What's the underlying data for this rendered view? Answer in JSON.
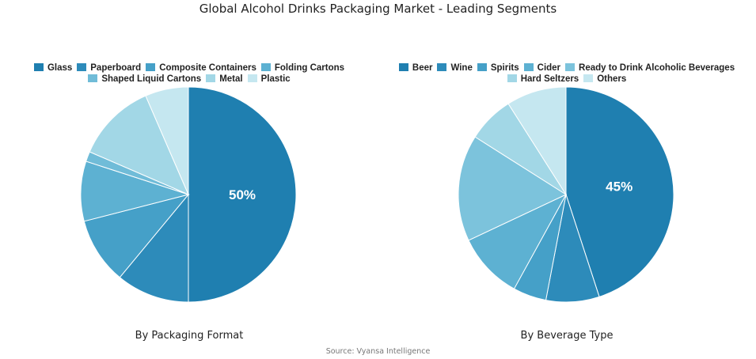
{
  "title": "Global Alcohol Drinks Packaging Market - Leading Segments",
  "source": "Source: Vyansa Intelligence",
  "chart_data": [
    {
      "type": "pie",
      "caption": "By Packaging Format",
      "labels": [
        "Glass",
        "Paperboard",
        "Composite Containers",
        "Folding Cartons",
        "Shaped Liquid Cartons",
        "Metal",
        "Plastic"
      ],
      "values": [
        50,
        11,
        10,
        9,
        1.5,
        12,
        6.5
      ],
      "colors": [
        "#1f7fb0",
        "#2d8bba",
        "#45a0c8",
        "#5db1d2",
        "#70bcd8",
        "#a2d7e6",
        "#c5e7f0"
      ],
      "data_labels": [
        "50%",
        "",
        "",
        "",
        "",
        "",
        ""
      ],
      "legend_rows": [
        [
          0,
          1,
          2,
          3
        ],
        [
          4,
          5,
          6
        ]
      ]
    },
    {
      "type": "pie",
      "caption": "By Beverage Type",
      "labels": [
        "Beer",
        "Wine",
        "Spirits",
        "Cider",
        "Ready to Drink Alcoholic Beverages",
        "Hard Seltzers",
        "Others"
      ],
      "values": [
        45,
        8,
        5,
        10,
        16,
        7,
        9
      ],
      "colors": [
        "#1f7fb0",
        "#2d8bba",
        "#45a0c8",
        "#5db1d2",
        "#7cc3dc",
        "#a2d7e6",
        "#c5e7f0"
      ],
      "data_labels": [
        "45%",
        "",
        "",
        "",
        "",
        "",
        ""
      ],
      "legend_rows": [
        [
          0,
          1,
          2,
          3,
          4
        ],
        [
          5,
          6
        ]
      ]
    }
  ]
}
